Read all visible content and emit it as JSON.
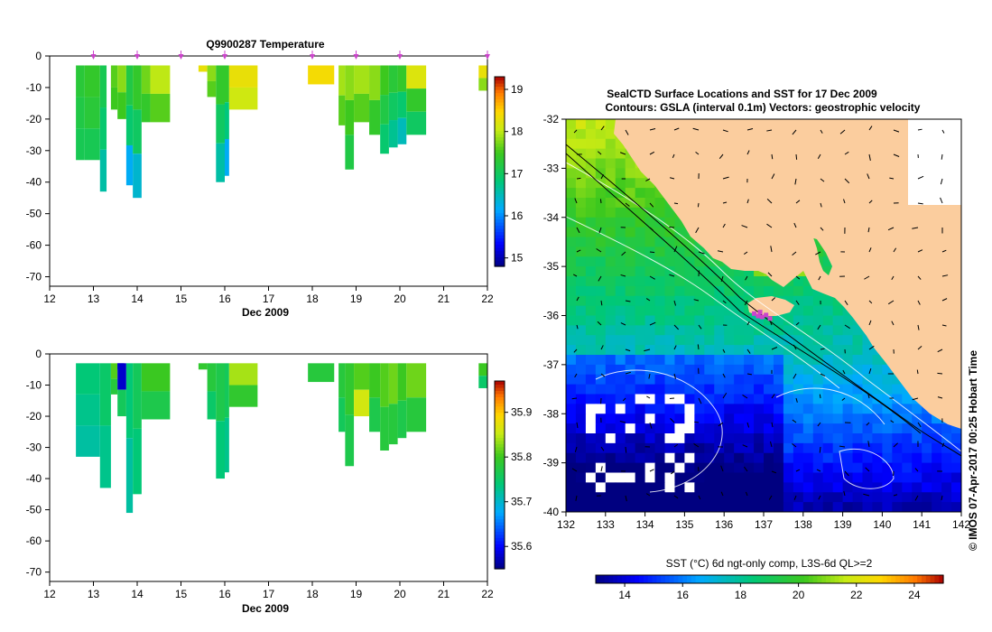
{
  "colors": {
    "land": "#fbcd9e",
    "marker": "#cc44cc",
    "contour": "#ffffff",
    "coast": "#000000"
  },
  "chart_data": [
    {
      "type": "heatmap",
      "title": "Q9900287  Temperature",
      "xlabel": "Dec 2009",
      "ylabel": "",
      "xlim": [
        12,
        22
      ],
      "ylim": [
        -73,
        0
      ],
      "xticks": [
        "12",
        "13",
        "14",
        "15",
        "16",
        "17",
        "18",
        "19",
        "20",
        "21",
        "22"
      ],
      "yticks": [
        "0",
        "-10",
        "-20",
        "-30",
        "-40",
        "-50",
        "-60",
        "-70"
      ],
      "colorbar": {
        "range": [
          14.8,
          19.3
        ],
        "ticks": [
          "15",
          "16",
          "17",
          "18",
          "19"
        ]
      },
      "profile_markers": [
        13,
        14,
        15,
        16,
        18,
        19,
        20,
        22
      ],
      "profiles": [
        {
          "x0": 12.6,
          "x1": 12.8,
          "depth": 33,
          "values": [
            17.3,
            17.2,
            17.1
          ]
        },
        {
          "x0": 12.8,
          "x1": 13.15,
          "depth": 33,
          "values": [
            17.4,
            17.3,
            17.1
          ]
        },
        {
          "x0": 13.15,
          "x1": 13.3,
          "depth": 43,
          "values": [
            17.1,
            16.9,
            16.6
          ]
        },
        {
          "x0": 13.4,
          "x1": 13.55,
          "depth": 17,
          "values": [
            17.6,
            17.5
          ]
        },
        {
          "x0": 13.55,
          "x1": 13.75,
          "depth": 20,
          "values": [
            17.8,
            17.5
          ]
        },
        {
          "x0": 13.75,
          "x1": 13.9,
          "depth": 41,
          "values": [
            17.2,
            16.9,
            16.2
          ]
        },
        {
          "x0": 13.9,
          "x1": 14.1,
          "depth": 45,
          "values": [
            17.4,
            17.0,
            16.4
          ]
        },
        {
          "x0": 14.1,
          "x1": 14.3,
          "depth": 21,
          "values": [
            17.7,
            17.4
          ]
        },
        {
          "x0": 14.3,
          "x1": 14.75,
          "depth": 21,
          "values": [
            18.0,
            17.6
          ]
        },
        {
          "x0": 15.4,
          "x1": 15.6,
          "depth": 5,
          "values": [
            18.3
          ]
        },
        {
          "x0": 15.6,
          "x1": 15.8,
          "depth": 13,
          "values": [
            17.8,
            17.6
          ]
        },
        {
          "x0": 15.8,
          "x1": 16.0,
          "depth": 40,
          "values": [
            17.4,
            17.0,
            16.6
          ]
        },
        {
          "x0": 16.0,
          "x1": 16.1,
          "depth": 38,
          "values": [
            17.4,
            16.8,
            16.2
          ]
        },
        {
          "x0": 16.1,
          "x1": 16.75,
          "depth": 17,
          "values": [
            18.3,
            18.1
          ]
        },
        {
          "x0": 17.9,
          "x1": 18.5,
          "depth": 9,
          "values": [
            18.4
          ]
        },
        {
          "x0": 18.6,
          "x1": 18.75,
          "depth": 22,
          "values": [
            17.9,
            17.6
          ]
        },
        {
          "x0": 18.75,
          "x1": 18.95,
          "depth": 36,
          "values": [
            17.8,
            17.5,
            17.2
          ]
        },
        {
          "x0": 18.95,
          "x1": 19.3,
          "depth": 21,
          "values": [
            17.9,
            17.6
          ]
        },
        {
          "x0": 19.3,
          "x1": 19.55,
          "depth": 25,
          "values": [
            17.8,
            17.4
          ]
        },
        {
          "x0": 19.55,
          "x1": 19.75,
          "depth": 31,
          "values": [
            17.5,
            17.2,
            16.9
          ]
        },
        {
          "x0": 19.75,
          "x1": 19.95,
          "depth": 29,
          "values": [
            17.3,
            17.0,
            16.7
          ]
        },
        {
          "x0": 19.95,
          "x1": 20.15,
          "depth": 28,
          "values": [
            17.4,
            16.9,
            16.5
          ]
        },
        {
          "x0": 20.15,
          "x1": 20.6,
          "depth": 25,
          "values": [
            18.2,
            17.4,
            17.0
          ]
        },
        {
          "x0": 21.8,
          "x1": 22.0,
          "depth": 11,
          "values": [
            18.3,
            17.8
          ]
        }
      ]
    },
    {
      "type": "heatmap",
      "title": "",
      "xlabel": "Dec 2009",
      "ylabel": "",
      "xlim": [
        12,
        22
      ],
      "ylim": [
        -73,
        0
      ],
      "xticks": [
        "12",
        "13",
        "14",
        "15",
        "16",
        "17",
        "18",
        "19",
        "20",
        "21",
        "22"
      ],
      "yticks": [
        "0",
        "-10",
        "-20",
        "-30",
        "-40",
        "-50",
        "-60",
        "-70"
      ],
      "colorbar": {
        "range": [
          35.55,
          35.97
        ],
        "ticks": [
          "35.6",
          "35.7",
          "35.8",
          "35.9"
        ]
      },
      "profiles": [
        {
          "x0": 12.6,
          "x1": 13.15,
          "depth": 33,
          "values": [
            35.74,
            35.73,
            35.72
          ]
        },
        {
          "x0": 13.15,
          "x1": 13.4,
          "depth": 43,
          "values": [
            35.75,
            35.73
          ]
        },
        {
          "x0": 13.4,
          "x1": 13.55,
          "depth": 13,
          "values": [
            35.81,
            35.78
          ]
        },
        {
          "x0": 13.55,
          "x1": 13.7,
          "depth": 5,
          "values": [
            35.58
          ]
        },
        {
          "x0": 13.55,
          "x1": 13.75,
          "depth": 20,
          "values": [
            35.58,
            35.76
          ]
        },
        {
          "x0": 13.75,
          "x1": 13.9,
          "depth": 51,
          "values": [
            35.74,
            35.72
          ]
        },
        {
          "x0": 13.9,
          "x1": 14.1,
          "depth": 45,
          "values": [
            35.76,
            35.74
          ]
        },
        {
          "x0": 14.1,
          "x1": 14.75,
          "depth": 21,
          "values": [
            35.8,
            35.77
          ]
        },
        {
          "x0": 15.4,
          "x1": 15.6,
          "depth": 5,
          "values": [
            35.79
          ]
        },
        {
          "x0": 15.6,
          "x1": 15.8,
          "depth": 21,
          "values": [
            35.78,
            35.75
          ]
        },
        {
          "x0": 15.8,
          "x1": 16.0,
          "depth": 40,
          "values": [
            35.77,
            35.74
          ]
        },
        {
          "x0": 16.0,
          "x1": 16.1,
          "depth": 38,
          "values": [
            35.76,
            35.73
          ]
        },
        {
          "x0": 16.1,
          "x1": 16.75,
          "depth": 17,
          "values": [
            35.84,
            35.79
          ]
        },
        {
          "x0": 17.9,
          "x1": 18.5,
          "depth": 9,
          "values": [
            35.78
          ]
        },
        {
          "x0": 18.6,
          "x1": 18.75,
          "depth": 25,
          "values": [
            35.78,
            35.76
          ]
        },
        {
          "x0": 18.75,
          "x1": 18.95,
          "depth": 36,
          "values": [
            35.79,
            35.77
          ]
        },
        {
          "x0": 18.95,
          "x1": 19.3,
          "depth": 20,
          "values": [
            35.81,
            35.86
          ]
        },
        {
          "x0": 19.3,
          "x1": 19.55,
          "depth": 25,
          "values": [
            35.8,
            35.77
          ]
        },
        {
          "x0": 19.55,
          "x1": 19.75,
          "depth": 31,
          "values": [
            35.81,
            35.78
          ]
        },
        {
          "x0": 19.75,
          "x1": 19.95,
          "depth": 29,
          "values": [
            35.82,
            35.78
          ]
        },
        {
          "x0": 19.95,
          "x1": 20.15,
          "depth": 27,
          "values": [
            35.8,
            35.77
          ]
        },
        {
          "x0": 20.15,
          "x1": 20.6,
          "depth": 25,
          "values": [
            35.82,
            35.78
          ]
        },
        {
          "x0": 21.8,
          "x1": 22.0,
          "depth": 11,
          "values": [
            35.8,
            35.75
          ]
        }
      ]
    },
    {
      "type": "heatmap",
      "title": "SealCTD Surface Locations and SST for 17 Dec 2009",
      "subtitle": "Contours: GSLA (interval 0.1m) Vectors: geostrophic velocity",
      "xlabel": "",
      "ylabel": "",
      "xlim": [
        132,
        142
      ],
      "ylim": [
        -40,
        -32
      ],
      "xticks": [
        "132",
        "133",
        "134",
        "135",
        "136",
        "137",
        "138",
        "139",
        "140",
        "141",
        "142"
      ],
      "yticks": [
        "-32",
        "-33",
        "-34",
        "-35",
        "-36",
        "-37",
        "-38",
        "-39",
        "-40"
      ],
      "colorbar_label": "SST (°C) 6d ngt-only comp, L3S-6d QL>=2",
      "colorbar": {
        "range": [
          13,
          25
        ],
        "ticks": [
          "14",
          "16",
          "18",
          "20",
          "22",
          "24"
        ]
      },
      "side_label": "© IMOS 07-Apr-2017 00:25 Hobart Time",
      "seal_positions": [
        {
          "lon": 136.75,
          "lat": -35.95
        },
        {
          "lon": 136.85,
          "lat": -36.0
        },
        {
          "lon": 136.95,
          "lat": -36.02
        },
        {
          "lon": 137.05,
          "lat": -35.98
        },
        {
          "lon": 137.15,
          "lat": -36.05
        },
        {
          "lon": 136.9,
          "lat": -35.92
        }
      ]
    }
  ]
}
